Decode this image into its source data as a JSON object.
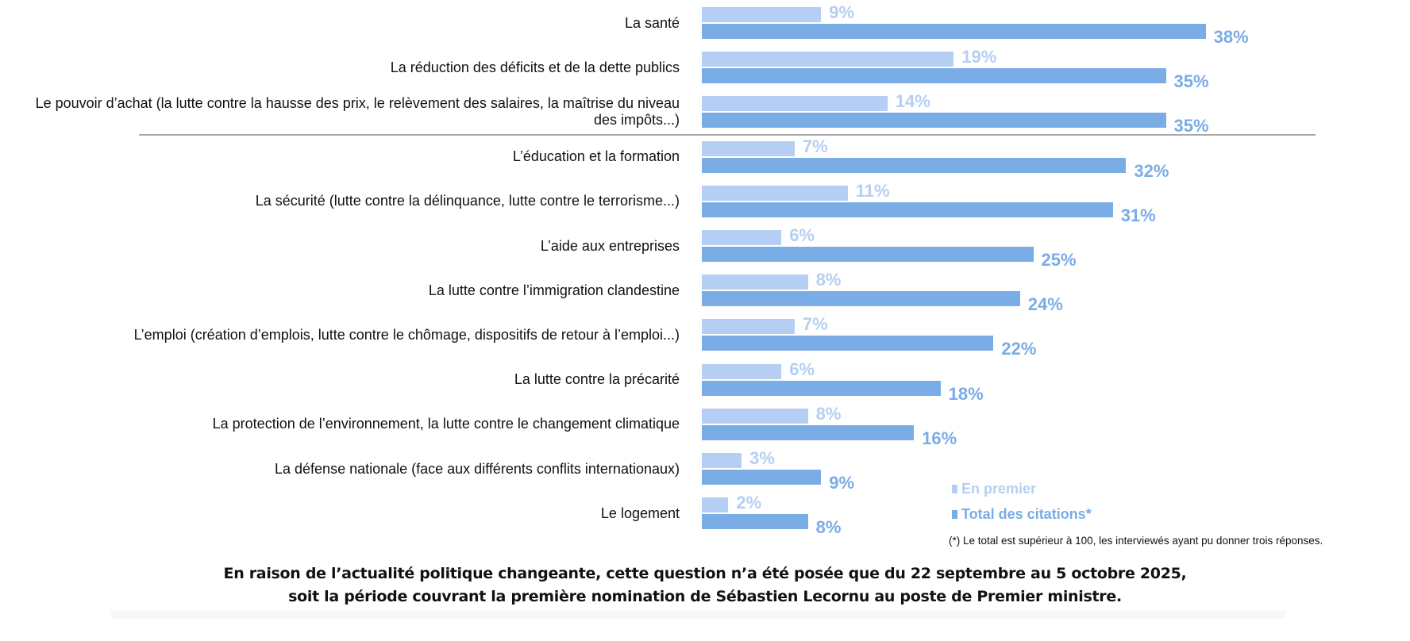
{
  "chart_data": {
    "type": "bar",
    "orientation": "horizontal",
    "categories": [
      "La santé",
      "La réduction des déficits et de la dette publics",
      "Le pouvoir d’achat (la lutte contre la hausse des prix, le relèvement des salaires, la maîtrise du niveau des impôts...)",
      "L’éducation et la formation",
      "La sécurité (lutte contre la délinquance, lutte contre le terrorisme...)",
      "L’aide aux entreprises",
      "La lutte contre l’immigration clandestine",
      "L’emploi (création d’emplois, lutte contre le chômage, dispositifs de retour à l’emploi...)",
      "La lutte contre la précarité",
      "La protection de l’environnement, la lutte contre le changement climatique",
      "La défense nationale (face aux différents conflits internationaux)",
      "Le logement"
    ],
    "series": [
      {
        "name": "En premier",
        "color": "#b4cff3",
        "values": [
          9,
          19,
          14,
          7,
          11,
          6,
          8,
          7,
          6,
          8,
          3,
          2
        ]
      },
      {
        "name": "Total des citations*",
        "color": "#7aace6",
        "values": [
          38,
          35,
          35,
          32,
          31,
          25,
          24,
          22,
          18,
          16,
          9,
          8
        ]
      }
    ],
    "value_suffix": "%",
    "legend_position": "bottom-right",
    "separator_after_index": 2,
    "grid": false
  },
  "legend": {
    "first": "En premier",
    "total": "Total des citations*"
  },
  "footnote": "(*) Le total est supérieur à 100, les interviewés ayant pu donner trois réponses.",
  "bottom_note": {
    "line1": "En raison de l’actualité politique changeante, cette question n’a été posée que du 22 septembre au 5 octobre 2025,",
    "line2": "soit la période couvrant la première nomination de Sébastien Lecornu au poste de Premier ministre."
  }
}
